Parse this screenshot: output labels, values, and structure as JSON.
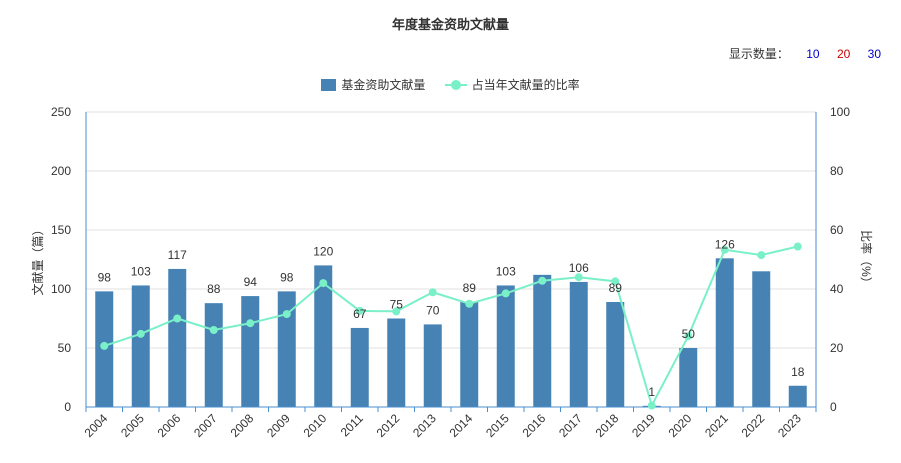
{
  "header": {
    "title": "年度基金资助文献量",
    "display_count_label": "显示数量：",
    "display_count_options": [
      {
        "label": "10",
        "color": "#0000cc"
      },
      {
        "label": "20",
        "color": "#cc0000"
      },
      {
        "label": "30",
        "color": "#0000cc"
      }
    ]
  },
  "legend": {
    "bar_label": "基金资助文献量",
    "line_label": "占当年文献量的比率"
  },
  "colors": {
    "bar": "#4682b4",
    "line": "#7af0c8",
    "axis": "#4b8fcf",
    "grid": "#e0e0e0",
    "text": "#333333"
  },
  "chart_data": {
    "type": "bar",
    "title": "年度基金资助文献量",
    "categories": [
      "2004",
      "2005",
      "2006",
      "2007",
      "2008",
      "2009",
      "2010",
      "2011",
      "2012",
      "2013",
      "2014",
      "2015",
      "2016",
      "2017",
      "2018",
      "2019",
      "2020",
      "2021",
      "2022",
      "2023"
    ],
    "series": [
      {
        "name": "基金资助文献量",
        "type": "bar",
        "axis": "left",
        "values": [
          98,
          103,
          117,
          88,
          94,
          98,
          120,
          67,
          75,
          70,
          89,
          103,
          112,
          106,
          89,
          1,
          50,
          126,
          115,
          18
        ],
        "labels": [
          "98",
          "103",
          "117",
          "88",
          "94",
          "98",
          "120",
          "67",
          "75",
          "70",
          "89",
          "103",
          "",
          "106",
          "89",
          "1",
          "50",
          "126",
          "",
          "18"
        ]
      },
      {
        "name": "占当年文献量的比率",
        "type": "line",
        "axis": "right",
        "values": [
          20.7,
          24.8,
          30.0,
          26.1,
          28.4,
          31.5,
          42.0,
          32.6,
          32.4,
          38.9,
          35.0,
          38.5,
          42.8,
          44.0,
          42.6,
          0.5,
          24.0,
          53.3,
          51.5,
          54.4
        ]
      }
    ],
    "ylabel": "文献量（篇）",
    "ylabel_right": "比率（%）",
    "ylim": [
      0,
      250
    ],
    "yticks": [
      0,
      50,
      100,
      150,
      200,
      250
    ],
    "ylim_right": [
      0,
      100
    ],
    "yticks_right": [
      0,
      20,
      40,
      60,
      80,
      100
    ],
    "grid": true,
    "legend_position": "top-center"
  }
}
